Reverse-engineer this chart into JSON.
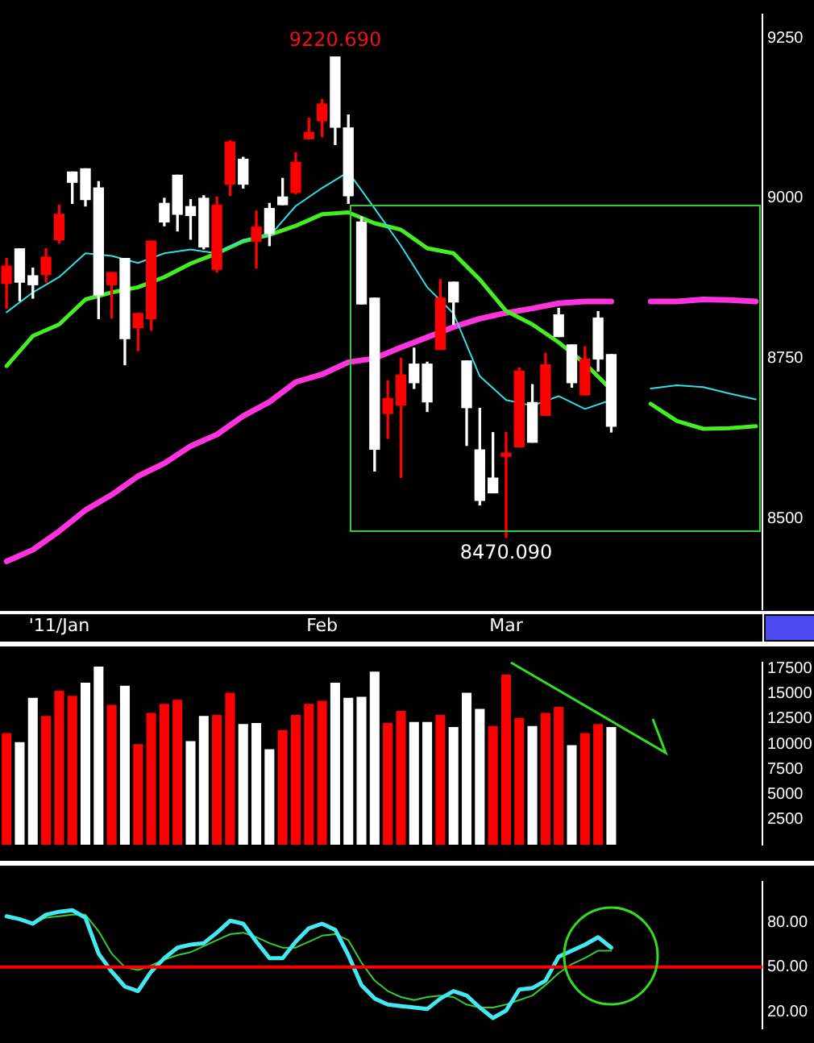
{
  "chart_data": [
    {
      "type": "candlestick",
      "categories": [
        null,
        null,
        null,
        null,
        "'11/Jan",
        null,
        null,
        null,
        null,
        null,
        null,
        null,
        null,
        null,
        null,
        null,
        null,
        null,
        null,
        null,
        null,
        null,
        null,
        null,
        "Feb",
        null,
        null,
        null,
        null,
        null,
        null,
        null,
        null,
        null,
        null,
        null,
        null,
        null,
        "Mar",
        null,
        null,
        null,
        null,
        null,
        null,
        null,
        null,
        null,
        null,
        null,
        null,
        null,
        null,
        null,
        null,
        null,
        null,
        null
      ],
      "ohlc": [
        [
          8867,
          8906,
          8828,
          8894
        ],
        [
          8921,
          8921,
          8840,
          8869
        ],
        [
          8879,
          8891,
          8844,
          8865
        ],
        [
          8881,
          8921,
          8869,
          8908
        ],
        [
          8935,
          8989,
          8930,
          8975
        ],
        [
          9041,
          9041,
          8992,
          9025
        ],
        [
          9046,
          9046,
          8988,
          8998
        ],
        [
          9016,
          9026,
          8812,
          8849
        ],
        [
          8865,
          8884,
          8813,
          8884
        ],
        [
          8906,
          8906,
          8740,
          8781
        ],
        [
          8798,
          8820,
          8762,
          8820
        ],
        [
          8812,
          8933,
          8794,
          8933
        ],
        [
          8992,
          9000,
          8957,
          8963
        ],
        [
          9036,
          9036,
          8949,
          8975
        ],
        [
          8987,
          8998,
          8936,
          8973
        ],
        [
          9000,
          9004,
          8921,
          8924
        ],
        [
          8889,
          9002,
          8885,
          8989
        ],
        [
          9022,
          9090,
          9004,
          9088
        ],
        [
          9061,
          9064,
          9016,
          9022
        ],
        [
          8933,
          8980,
          8891,
          8955
        ],
        [
          8984,
          8992,
          8926,
          8945
        ],
        [
          9002,
          9031,
          8990,
          8990
        ],
        [
          9009,
          9071,
          9007,
          9056
        ],
        [
          9093,
          9125,
          9093,
          9103
        ],
        [
          9121,
          9154,
          9096,
          9147
        ],
        [
          9220.69,
          9220.69,
          9084,
          9111
        ],
        [
          9110,
          9130,
          8992,
          9004
        ],
        [
          8963,
          8971,
          8835,
          8835
        ],
        [
          8844,
          8844,
          8574,
          8608
        ],
        [
          8664,
          8715,
          8625,
          8687
        ],
        [
          8677,
          8750,
          8564,
          8724
        ],
        [
          8741,
          8766,
          8703,
          8712
        ],
        [
          8741,
          8744,
          8667,
          8682
        ],
        [
          8764,
          8873,
          8764,
          8844
        ],
        [
          8869,
          8869,
          8803,
          8838
        ],
        [
          8746,
          8746,
          8614,
          8673
        ],
        [
          8607,
          8672,
          8521,
          8528
        ],
        [
          8563,
          8634,
          8540,
          8540
        ],
        [
          8597,
          8634,
          8470.09,
          8602
        ],
        [
          8612,
          8735,
          8612,
          8730
        ],
        [
          8681,
          8709,
          8619,
          8619
        ],
        [
          8661,
          8758,
          8661,
          8740
        ],
        [
          8818,
          8828,
          8784,
          8784
        ],
        [
          8771,
          8771,
          8705,
          8712
        ],
        [
          8693,
          8768,
          8693,
          8749
        ],
        [
          8813,
          8823,
          8730,
          8749
        ],
        [
          8756,
          8756,
          8635,
          8644
        ],
        null,
        null,
        null,
        null,
        null,
        null,
        null,
        null,
        null,
        null,
        null
      ],
      "colors": [
        "#ff0000",
        "#ffffff",
        "#ffffff",
        "#ff0000",
        "#ff0000",
        "#ffffff",
        "#ffffff",
        "#ffffff",
        "#ff0000",
        "#ffffff",
        "#ff0000",
        "#ff0000",
        "#ffffff",
        "#ffffff",
        "#ffffff",
        "#ffffff",
        "#ff0000",
        "#ff0000",
        "#ffffff",
        "#ff0000",
        "#ffffff",
        "#ffffff",
        "#ff0000",
        "#ff0000",
        "#ff0000",
        "#ffffff",
        "#ffffff",
        "#ffffff",
        "#ffffff",
        "#ff0000",
        "#ff0000",
        "#ffffff",
        "#ffffff",
        "#ff0000",
        "#ffffff",
        "#ffffff",
        "#ffffff",
        "#ffffff",
        "#ff0000",
        "#ff0000",
        "#ffffff",
        "#ff0000",
        "#ffffff",
        "#ffffff",
        "#ff0000",
        "#ffffff",
        "#ffffff",
        null,
        null,
        null,
        null,
        null,
        null,
        null,
        null,
        null,
        null,
        null
      ],
      "series": [
        {
          "type": "line",
          "color": "#33dde6",
          "values": [
            8822,
            null,
            8853,
            null,
            8877,
            null,
            8914,
            null,
            8910,
            null,
            8899,
            null,
            8914,
            null,
            8920,
            null,
            8914,
            null,
            8935,
            null,
            8941,
            null,
            8988,
            null,
            9016,
            null,
            9041,
            null,
            8984,
            null,
            8926,
            null,
            8861,
            null,
            8820,
            null,
            8722,
            null,
            8685,
            null,
            8676,
            null,
            8691,
            null,
            8671,
            null,
            8685,
            null,
            null,
            null,
            null,
            null,
            null,
            null,
            null,
            null,
            null,
            null
          ]
        },
        {
          "type": "line",
          "color": "#44ee22",
          "values": [
            8738,
            null,
            8785,
            null,
            8803,
            null,
            8842,
            null,
            8853,
            null,
            8861,
            null,
            8877,
            null,
            8898,
            null,
            8914,
            null,
            8933,
            null,
            8943,
            null,
            8957,
            null,
            8975,
            null,
            8978,
            null,
            8961,
            null,
            8951,
            null,
            8922,
            null,
            8914,
            null,
            8873,
            null,
            8824,
            null,
            8803,
            null,
            8775,
            null,
            8742,
            null,
            8701,
            null,
            null,
            null,
            null,
            null,
            null,
            null,
            null,
            null,
            null,
            null
          ]
        },
        {
          "type": "line",
          "color": "#ff33dd",
          "values": [
            8433,
            null,
            8451,
            null,
            8480,
            null,
            8513,
            null,
            8537,
            null,
            8566,
            null,
            8586,
            null,
            8613,
            null,
            8631,
            null,
            8660,
            null,
            8682,
            null,
            8713,
            null,
            8725,
            null,
            8744,
            null,
            8750,
            null,
            8767,
            null,
            8783,
            null,
            8799,
            null,
            8812,
            null,
            8821,
            null,
            8828,
            null,
            8836,
            null,
            8839,
            null,
            8839,
            null,
            null,
            null,
            null,
            null,
            null,
            null,
            null,
            null,
            null,
            null
          ]
        },
        {
          "type": "line",
          "color": "#33dde6",
          "values": [
            null,
            null,
            null,
            null,
            null,
            null,
            null,
            null,
            null,
            null,
            null,
            null,
            null,
            null,
            null,
            null,
            null,
            null,
            null,
            null,
            null,
            null,
            null,
            null,
            null,
            null,
            null,
            null,
            null,
            null,
            null,
            null,
            null,
            null,
            null,
            null,
            null,
            null,
            null,
            null,
            null,
            null,
            null,
            null,
            null,
            null,
            null,
            null,
            null,
            8703,
            null,
            8708,
            null,
            8705,
            null,
            8695,
            null,
            8686
          ]
        },
        {
          "type": "line",
          "color": "#44ee22",
          "values": [
            null,
            null,
            null,
            null,
            null,
            null,
            null,
            null,
            null,
            null,
            null,
            null,
            null,
            null,
            null,
            null,
            null,
            null,
            null,
            null,
            null,
            null,
            null,
            null,
            null,
            null,
            null,
            null,
            null,
            null,
            null,
            null,
            null,
            null,
            null,
            null,
            null,
            null,
            null,
            null,
            null,
            null,
            null,
            null,
            null,
            null,
            null,
            null,
            null,
            8679,
            null,
            8652,
            null,
            8640,
            null,
            8641,
            null,
            8644
          ]
        },
        {
          "type": "line",
          "color": "#ff33dd",
          "values": [
            null,
            null,
            null,
            null,
            null,
            null,
            null,
            null,
            null,
            null,
            null,
            null,
            null,
            null,
            null,
            null,
            null,
            null,
            null,
            null,
            null,
            null,
            null,
            null,
            null,
            null,
            null,
            null,
            null,
            null,
            null,
            null,
            null,
            null,
            null,
            null,
            null,
            null,
            null,
            null,
            null,
            null,
            null,
            null,
            null,
            null,
            null,
            null,
            null,
            8839,
            null,
            8839,
            null,
            8842,
            null,
            8841,
            null,
            8839
          ]
        }
      ],
      "annotations": [
        {
          "text": "9220.690",
          "y": 9220.69
        },
        {
          "text": "8470.090",
          "y": 8470.09
        }
      ],
      "ylim": [
        8358,
        9287
      ],
      "yticks": [
        9250,
        9000,
        8750,
        8500
      ]
    },
    {
      "type": "bar",
      "categories": [
        null,
        null,
        null,
        null,
        null,
        null,
        null,
        null,
        null,
        null,
        null,
        null,
        null,
        null,
        null,
        null,
        null,
        null,
        null,
        null,
        null,
        null,
        null,
        null,
        null,
        null,
        null,
        null,
        null,
        null,
        null,
        null,
        null,
        null,
        null,
        null,
        null,
        null,
        null,
        null,
        null,
        null,
        null,
        null,
        null,
        null,
        null,
        null,
        null,
        null,
        null,
        null,
        null,
        null,
        null,
        null,
        null,
        null
      ],
      "values": [
        11100,
        10200,
        14600,
        12800,
        15300,
        14800,
        16100,
        17700,
        13900,
        15800,
        10000,
        13100,
        14000,
        14400,
        10300,
        12800,
        12900,
        15100,
        12000,
        12100,
        9500,
        11400,
        12900,
        14000,
        14300,
        16100,
        14600,
        14700,
        17200,
        12100,
        13300,
        12200,
        12200,
        12900,
        11700,
        15100,
        13500,
        11800,
        16900,
        12600,
        11800,
        13100,
        13700,
        9900,
        11100,
        12000,
        11700,
        null,
        null,
        null,
        null,
        null,
        null,
        null,
        null,
        null,
        null,
        null
      ],
      "colors": [
        "#ff0000",
        "#ffffff",
        "#ffffff",
        "#ff0000",
        "#ff0000",
        "#ff0000",
        "#ffffff",
        "#ffffff",
        "#ff0000",
        "#ffffff",
        "#ff0000",
        "#ff0000",
        "#ff0000",
        "#ff0000",
        "#ffffff",
        "#ffffff",
        "#ff0000",
        "#ff0000",
        "#ffffff",
        "#ffffff",
        "#ffffff",
        "#ff0000",
        "#ff0000",
        "#ff0000",
        "#ff0000",
        "#ffffff",
        "#ffffff",
        "#ffffff",
        "#ffffff",
        "#ff0000",
        "#ff0000",
        "#ffffff",
        "#ffffff",
        "#ff0000",
        "#ffffff",
        "#ffffff",
        "#ffffff",
        "#ff0000",
        "#ff0000",
        "#ff0000",
        "#ffffff",
        "#ff0000",
        "#ff0000",
        "#ffffff",
        "#ff0000",
        "#ff0000",
        "#ffffff",
        null,
        null,
        null,
        null,
        null,
        null,
        null,
        null,
        null,
        null,
        null
      ],
      "ylim": [
        0,
        18100
      ],
      "yticks": [
        2500,
        5000,
        7500,
        10000,
        12500,
        15000,
        17500
      ],
      "tick_labels": "y"
    },
    {
      "type": "line",
      "categories": [
        null,
        null,
        null,
        null,
        null,
        null,
        null,
        null,
        null,
        null,
        null,
        null,
        null,
        null,
        null,
        null,
        null,
        null,
        null,
        null,
        null,
        null,
        null,
        null,
        null,
        null,
        null,
        null,
        null,
        null,
        null,
        null,
        null,
        null,
        null,
        null,
        null,
        null,
        null,
        null,
        null,
        null,
        null,
        null,
        null,
        null,
        null,
        null,
        null,
        null,
        null,
        null,
        null,
        null,
        null,
        null,
        null,
        null
      ],
      "series": [
        {
          "color": "#44e8f0",
          "values": [
            84,
            82,
            79,
            85,
            87,
            88,
            83,
            59,
            47,
            37,
            34,
            47,
            56,
            63,
            65,
            66,
            73,
            81,
            79,
            67,
            56,
            56,
            67,
            76,
            79,
            75,
            58,
            38,
            29,
            25,
            24,
            23,
            22,
            29,
            34,
            31,
            23,
            16,
            21,
            35,
            36,
            41,
            57,
            61,
            65,
            70,
            63,
            null,
            null,
            null,
            null,
            null,
            null,
            null,
            null,
            null,
            null,
            null
          ]
        },
        {
          "color": "#33cc33",
          "values": [
            null,
            null,
            80,
            83,
            84,
            85,
            85,
            74,
            59,
            50,
            48,
            51,
            55,
            58,
            60,
            64,
            68,
            72,
            73,
            70,
            66,
            63,
            63,
            67,
            71,
            72,
            68,
            53,
            41,
            34,
            30,
            28,
            30,
            31,
            30,
            25,
            23,
            23,
            25,
            28,
            31,
            38,
            46,
            52,
            56,
            61,
            61,
            null,
            null,
            null,
            null,
            null,
            null,
            null,
            null,
            null,
            null,
            null
          ]
        }
      ],
      "ref_lines": [
        {
          "axis": "y",
          "value": 50,
          "color": "#ff0000"
        }
      ],
      "ylim": [
        9,
        107
      ],
      "yticks": [
        {
          "value": 80,
          "label": "80.00"
        },
        {
          "value": 50,
          "label": "50.00"
        },
        {
          "value": 20,
          "label": "20.00"
        }
      ],
      "tick_labels": "y"
    }
  ]
}
